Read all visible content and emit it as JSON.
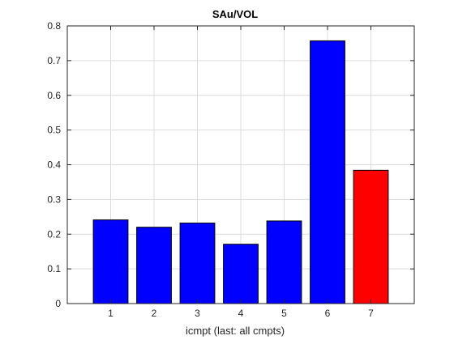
{
  "chart_data": {
    "type": "bar",
    "title": "SAu/VOL",
    "xlabel": "icmpt (last: all cmpts)",
    "ylabel": "",
    "categories": [
      "1",
      "2",
      "3",
      "4",
      "5",
      "6",
      "7"
    ],
    "values": [
      0.241,
      0.22,
      0.232,
      0.171,
      0.238,
      0.757,
      0.384
    ],
    "colors": [
      "#0000ff",
      "#0000ff",
      "#0000ff",
      "#0000ff",
      "#0000ff",
      "#0000ff",
      "#ff0000"
    ],
    "ylim": [
      0,
      0.8
    ],
    "xlim": [
      0,
      8
    ],
    "yticks": [
      "0",
      "0.1",
      "0.2",
      "0.3",
      "0.4",
      "0.5",
      "0.6",
      "0.7",
      "0.8"
    ],
    "grid": true,
    "box": true
  }
}
